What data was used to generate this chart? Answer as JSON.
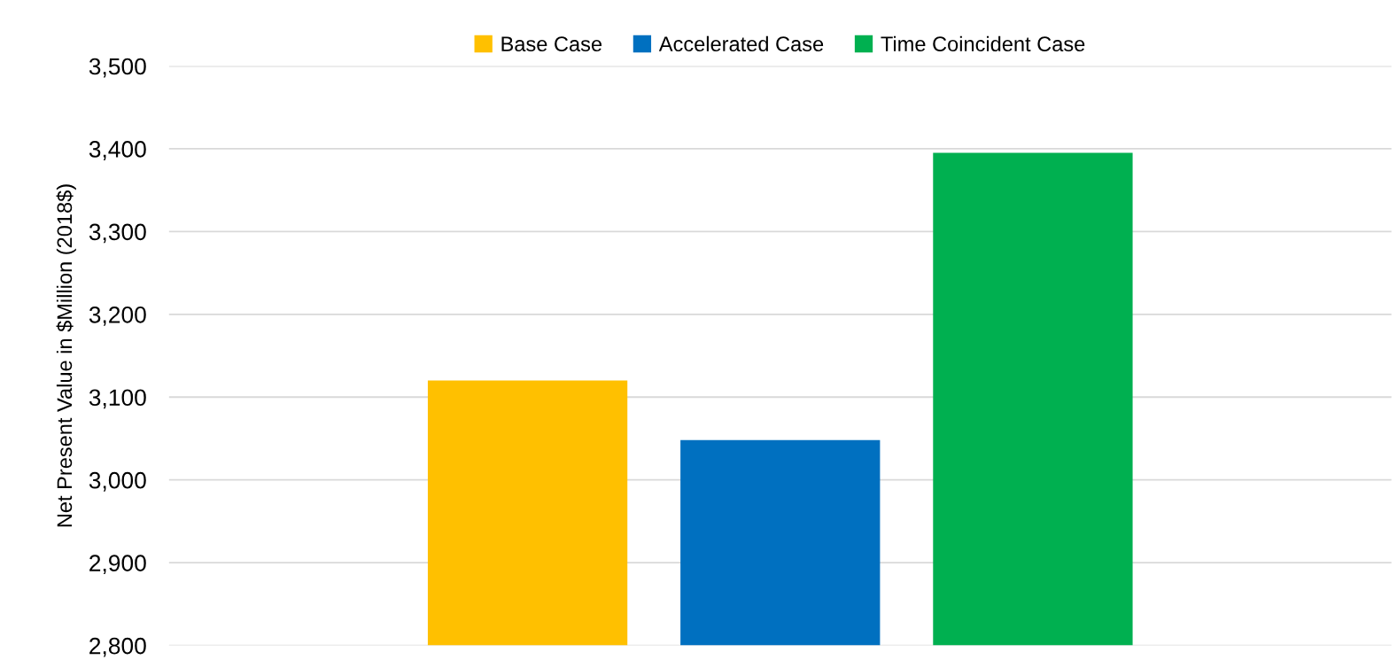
{
  "chart_data": {
    "type": "bar",
    "ylabel": "Net Present Value in $Million (2018$)",
    "categories": [
      null
    ],
    "series": [
      {
        "name": "Base Case",
        "color": "#ffc000",
        "values": [
          3120
        ]
      },
      {
        "name": "Accelerated Case",
        "color": "#0070c0",
        "values": [
          3048
        ]
      },
      {
        "name": "Time Coincident Case",
        "color": "#00b050",
        "values": [
          3395
        ]
      }
    ],
    "ylim": [
      2800,
      3500
    ],
    "yticks": [
      {
        "value": 2800,
        "label": "2,800"
      },
      {
        "value": 2900,
        "label": "2,900"
      },
      {
        "value": 3000,
        "label": "3,000"
      },
      {
        "value": 3100,
        "label": "3,100"
      },
      {
        "value": 3200,
        "label": "3,200"
      },
      {
        "value": 3300,
        "label": "3,300"
      },
      {
        "value": 3400,
        "label": "3,400"
      },
      {
        "value": 3500,
        "label": "3,500"
      }
    ],
    "grid": "y",
    "legend": "top",
    "tick_labels": "y"
  }
}
